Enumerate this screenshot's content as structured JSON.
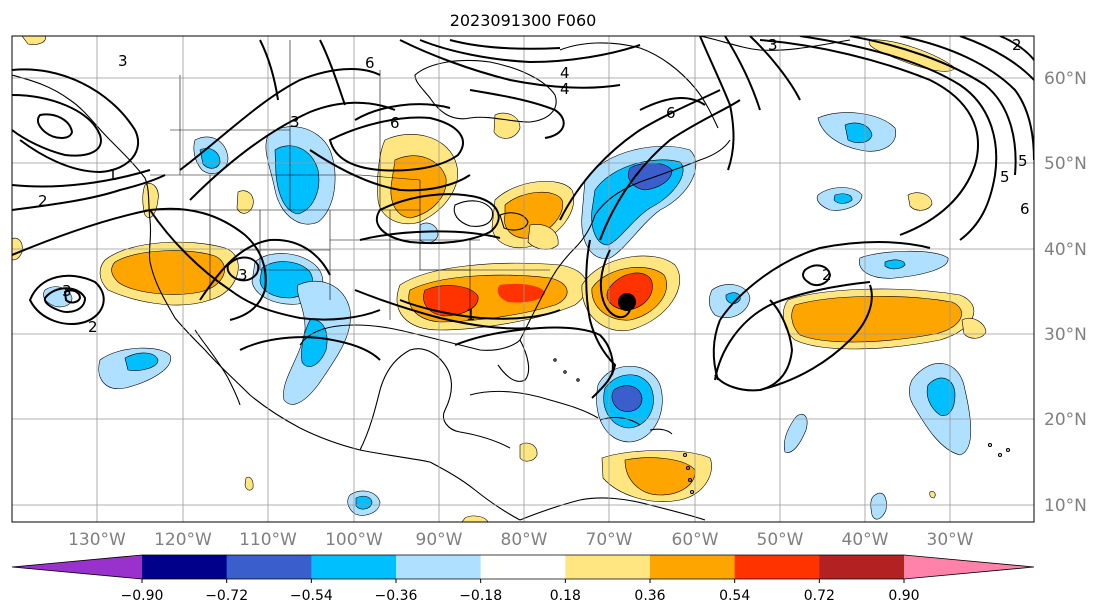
{
  "title": "2023091300 F060",
  "lon_labels": [
    "130°W",
    "120°W",
    "110°W",
    "100°W",
    "90°W",
    "80°W",
    "70°W",
    "60°W",
    "50°W",
    "40°W",
    "30°W"
  ],
  "lat_labels": [
    "60°N",
    "50°N",
    "40°N",
    "30°N",
    "20°N",
    "10°N"
  ],
  "colorbar": {
    "ticks": [
      "−0.90",
      "−0.72",
      "−0.54",
      "−0.36",
      "−0.18",
      "0.18",
      "0.36",
      "0.54",
      "0.72",
      "0.90"
    ],
    "colors": [
      "#9932cc",
      "#00008b",
      "#3a5fcd",
      "#00bfff",
      "#b0e0ff",
      "#ffffff",
      "#ffe680",
      "#ffa500",
      "#ff3300",
      "#b22222",
      "#ff82ab"
    ]
  },
  "contour_labels": [
    "6",
    "4",
    "3",
    "6",
    "3",
    "2",
    "1",
    "3",
    "2",
    "3",
    "1",
    "2",
    "6",
    "4",
    "5",
    "6",
    "5",
    "3",
    "2"
  ],
  "marker": {
    "name": "storm-center",
    "color": "#000000"
  }
}
